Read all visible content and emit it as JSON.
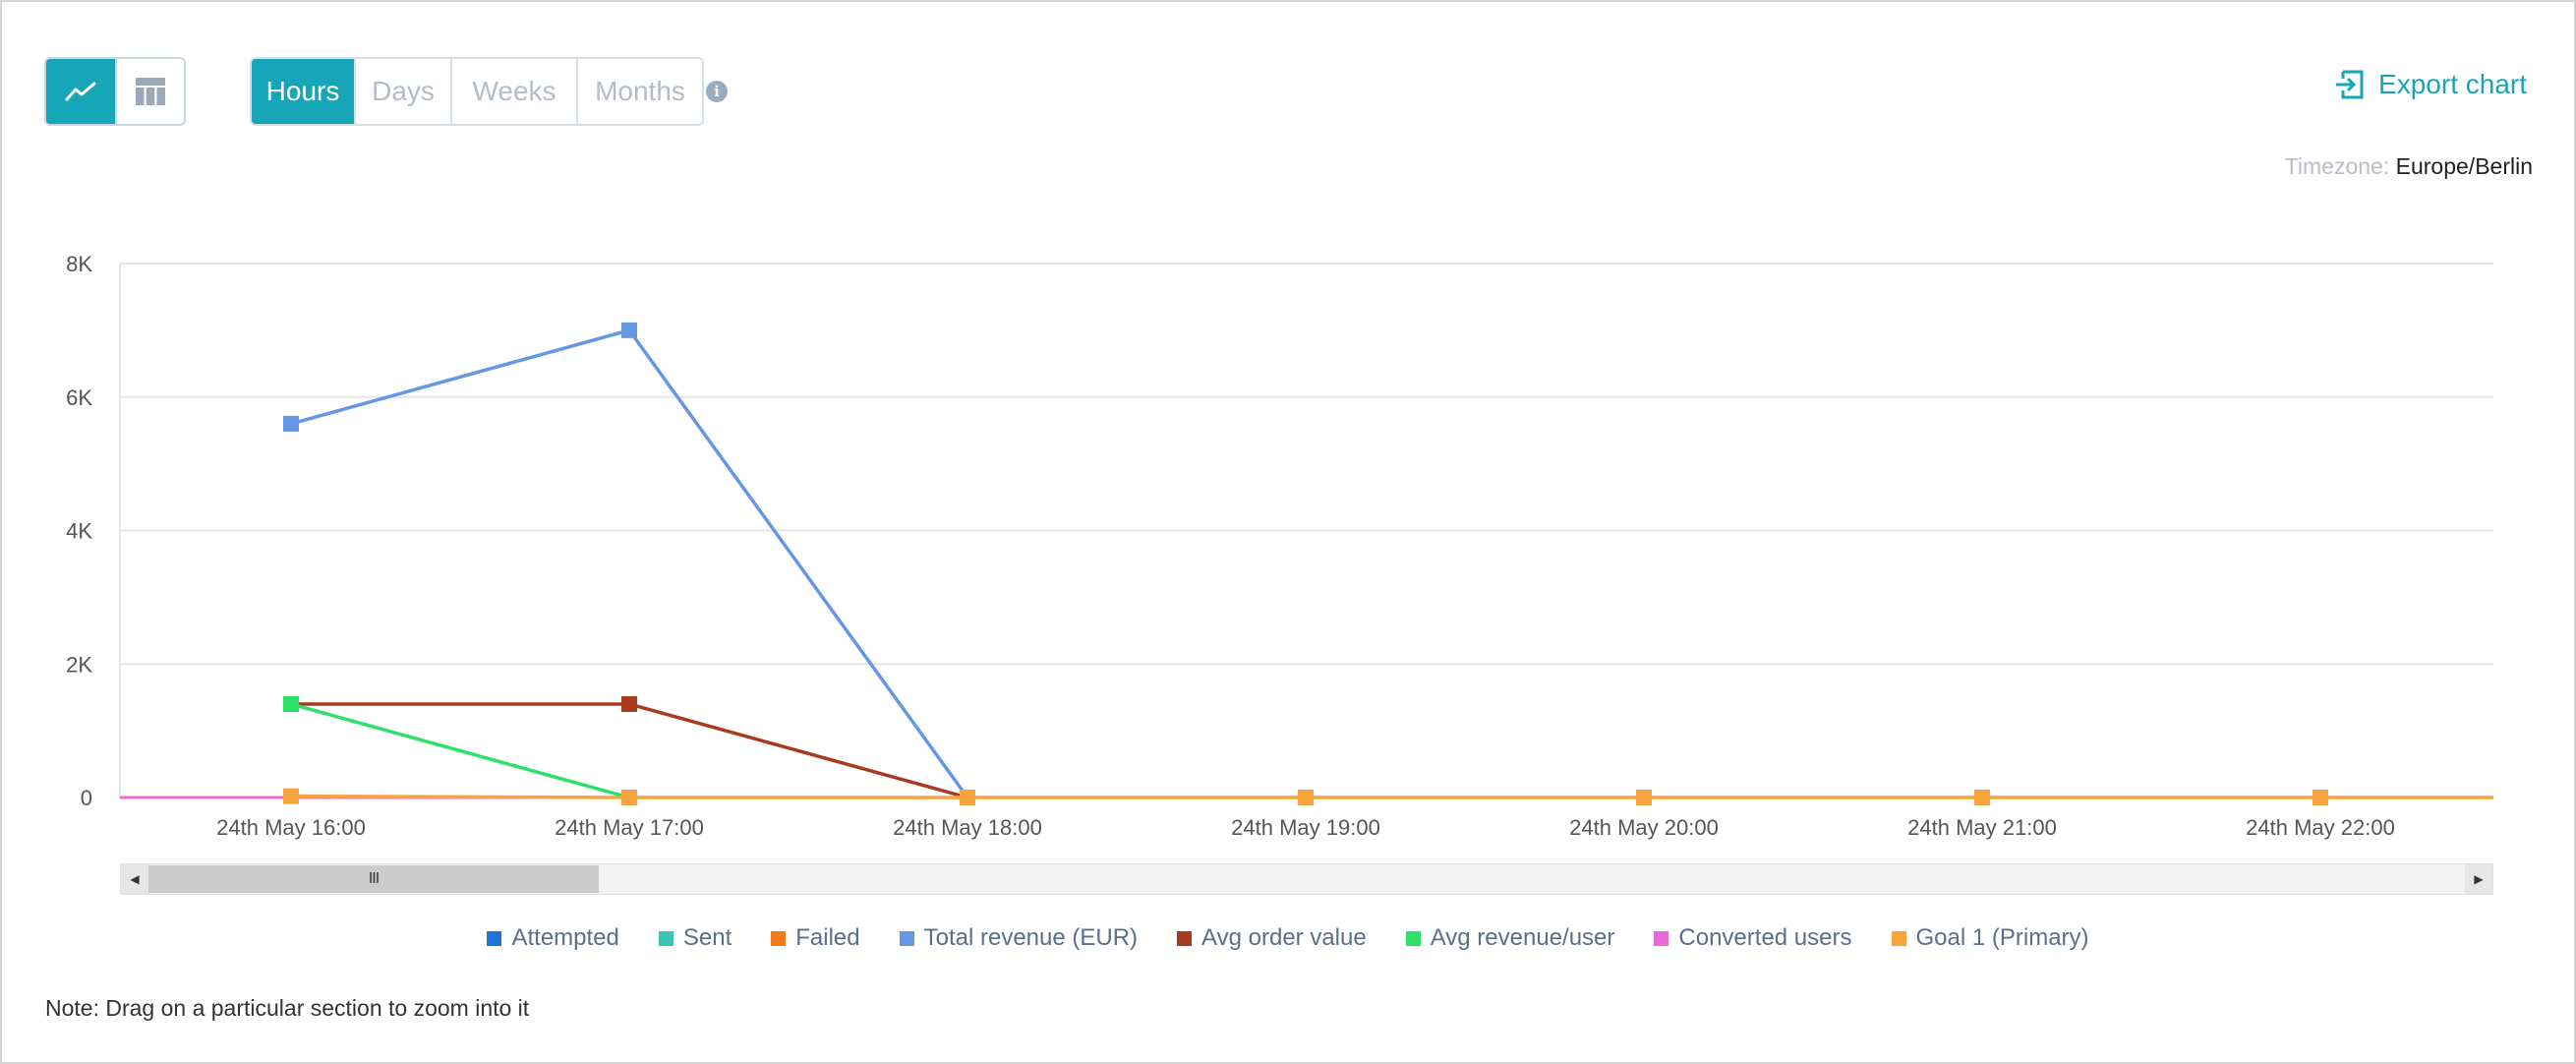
{
  "toolbar": {
    "views": [
      {
        "name": "line-chart-icon",
        "active": true
      },
      {
        "name": "table-icon",
        "active": false
      }
    ],
    "periods": [
      {
        "label": "Hours",
        "active": true
      },
      {
        "label": "Days",
        "active": false
      },
      {
        "label": "Weeks",
        "active": false
      },
      {
        "label": "Months",
        "active": false
      }
    ],
    "info_icon": "i",
    "export_label": "Export chart"
  },
  "timezone": {
    "label": "Timezone:",
    "value": "Europe/Berlin"
  },
  "colors": {
    "accent": "#17a6b7"
  },
  "chart_data": {
    "type": "line",
    "categories": [
      "24th May 16:00",
      "24th May 17:00",
      "24th May 18:00",
      "24th May 19:00",
      "24th May 20:00",
      "24th May 21:00",
      "24th May 22:00"
    ],
    "y_ticks": [
      "0",
      "2K",
      "4K",
      "6K",
      "8K"
    ],
    "ylim": [
      0,
      8000
    ],
    "grid": true,
    "legend_position": "bottom",
    "series": [
      {
        "name": "Attempted",
        "color": "#1e74d6",
        "values": [
          0,
          0,
          0,
          0,
          0,
          0,
          0
        ],
        "markers": false
      },
      {
        "name": "Sent",
        "color": "#3cc3b7",
        "values": [
          0,
          0,
          0,
          0,
          0,
          0,
          0
        ],
        "markers": false
      },
      {
        "name": "Failed",
        "color": "#f27d18",
        "values": [
          0,
          0,
          0,
          0,
          0,
          0,
          0
        ],
        "markers": false
      },
      {
        "name": "Total revenue (EUR)",
        "color": "#6597e6",
        "values": [
          5600,
          7000,
          0,
          null,
          null,
          null,
          null
        ],
        "markers": true
      },
      {
        "name": "Avg order value",
        "color": "#a83a1e",
        "values": [
          1400,
          1400,
          0,
          null,
          null,
          null,
          null
        ],
        "markers": true
      },
      {
        "name": "Avg revenue/user",
        "color": "#2ee06a",
        "values": [
          1400,
          0,
          null,
          null,
          null,
          null,
          null
        ],
        "markers": true
      },
      {
        "name": "Converted users",
        "color": "#e86ad8",
        "values": [
          0,
          0,
          0,
          0,
          0,
          0,
          0
        ],
        "markers": false
      },
      {
        "name": "Goal 1 (Primary)",
        "color": "#f7a43e",
        "values": [
          20,
          0,
          0,
          0,
          0,
          0,
          0
        ],
        "markers": true
      }
    ]
  },
  "scrollbar": {
    "grip": "III",
    "left_arrow": "◀",
    "right_arrow": "▶"
  },
  "note": "Note: Drag on a particular section to zoom into it"
}
